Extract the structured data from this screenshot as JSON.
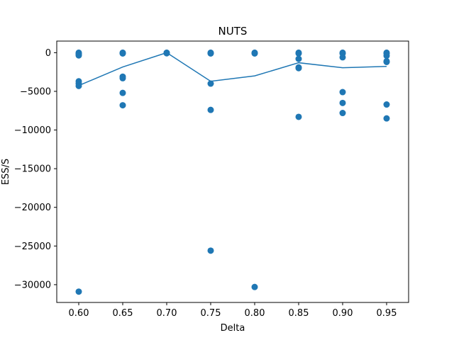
{
  "chart_data": {
    "type": "scatter",
    "title": "NUTS",
    "xlabel": "Delta",
    "ylabel": "ESS/S",
    "xlim": [
      0.575,
      0.975
    ],
    "ylim": [
      -32300,
      1500
    ],
    "xticks": [
      0.6,
      0.65,
      0.7,
      0.75,
      0.8,
      0.85,
      0.9,
      0.95
    ],
    "xtick_labels": [
      "0.60",
      "0.65",
      "0.70",
      "0.75",
      "0.80",
      "0.85",
      "0.90",
      "0.95"
    ],
    "yticks": [
      0,
      -5000,
      -10000,
      -15000,
      -20000,
      -25000,
      -30000
    ],
    "ytick_labels": [
      "0",
      "−5000",
      "−10000",
      "−15000",
      "−20000",
      "−25000",
      "−30000"
    ],
    "grid": false,
    "legend": "none",
    "series": [
      {
        "kind": "scatter",
        "color": "#1f77b4",
        "points": [
          [
            0.6,
            0
          ],
          [
            0.6,
            -100
          ],
          [
            0.6,
            -200
          ],
          [
            0.6,
            -350
          ],
          [
            0.6,
            -3700
          ],
          [
            0.6,
            -4000
          ],
          [
            0.6,
            -4300
          ],
          [
            0.6,
            -30900
          ],
          [
            0.65,
            0
          ],
          [
            0.65,
            -50
          ],
          [
            0.65,
            -100
          ],
          [
            0.65,
            -3100
          ],
          [
            0.65,
            -3300
          ],
          [
            0.65,
            -5200
          ],
          [
            0.65,
            -6800
          ],
          [
            0.7,
            0
          ],
          [
            0.7,
            -30
          ],
          [
            0.7,
            -80
          ],
          [
            0.75,
            0
          ],
          [
            0.75,
            -50
          ],
          [
            0.75,
            -100
          ],
          [
            0.75,
            -4000
          ],
          [
            0.75,
            -7400
          ],
          [
            0.75,
            -25600
          ],
          [
            0.8,
            0
          ],
          [
            0.8,
            -50
          ],
          [
            0.8,
            -100
          ],
          [
            0.8,
            -30300
          ],
          [
            0.85,
            0
          ],
          [
            0.85,
            -100
          ],
          [
            0.85,
            -800
          ],
          [
            0.85,
            -1900
          ],
          [
            0.85,
            -2000
          ],
          [
            0.85,
            -8300
          ],
          [
            0.9,
            0
          ],
          [
            0.9,
            -100
          ],
          [
            0.9,
            -600
          ],
          [
            0.9,
            -5100
          ],
          [
            0.9,
            -6500
          ],
          [
            0.9,
            -7800
          ],
          [
            0.95,
            0
          ],
          [
            0.95,
            -100
          ],
          [
            0.95,
            -400
          ],
          [
            0.95,
            -1100
          ],
          [
            0.95,
            -1200
          ],
          [
            0.95,
            -6700
          ],
          [
            0.95,
            -8500
          ]
        ]
      },
      {
        "kind": "line",
        "color": "#1f77b4",
        "x": [
          0.6,
          0.65,
          0.7,
          0.75,
          0.8,
          0.85,
          0.9,
          0.95
        ],
        "y": [
          -4250,
          -1850,
          0,
          -3700,
          -3000,
          -1300,
          -1950,
          -1780
        ]
      }
    ]
  }
}
